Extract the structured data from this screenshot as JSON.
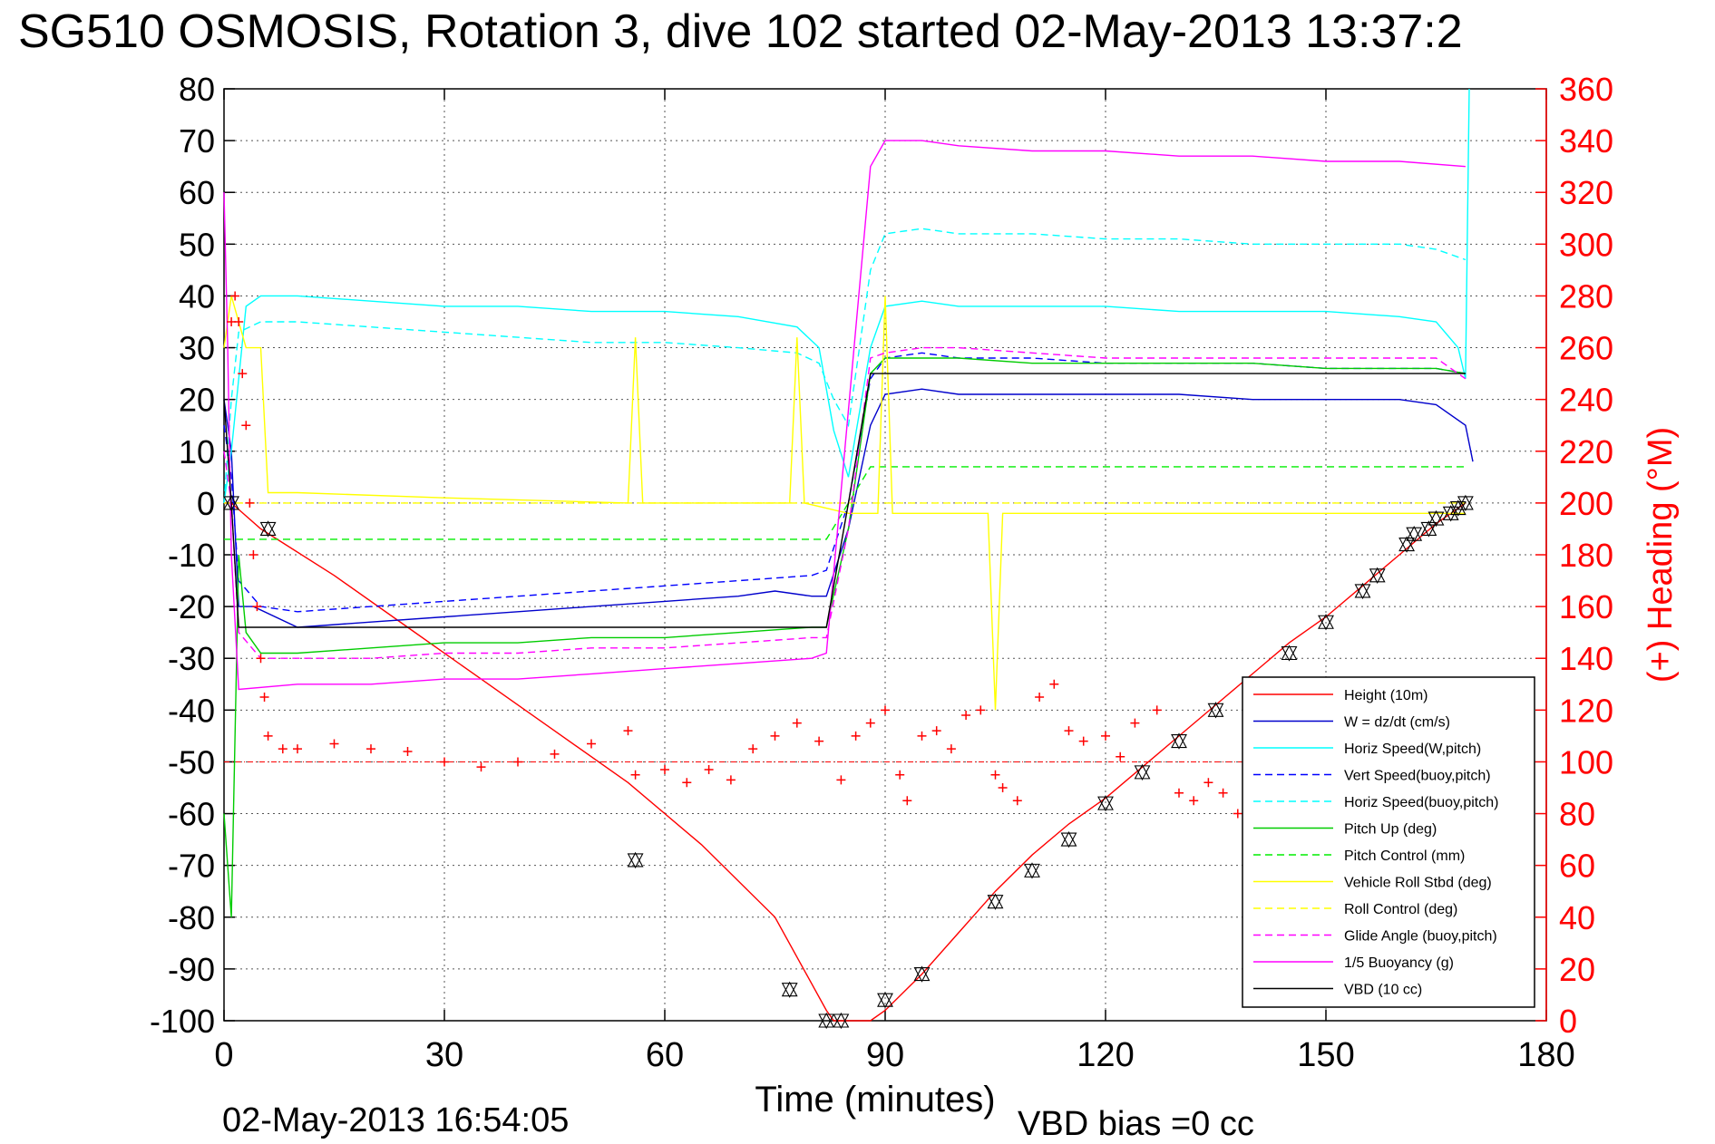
{
  "chart_data": {
    "type": "line",
    "title": "SG510 OSMOSIS, Rotation 3, dive 102 started 02-May-2013 13:37:2",
    "xlabel": "Time (minutes)",
    "ylabel": "",
    "y2label": "(+) Heading (°M)",
    "xlim": [
      0,
      180
    ],
    "ylim": [
      -100,
      80
    ],
    "y2lim": [
      0,
      360
    ],
    "xticks": [
      "0",
      "30",
      "60",
      "90",
      "120",
      "150",
      "180"
    ],
    "yticks": [
      "80",
      "70",
      "60",
      "50",
      "40",
      "30",
      "20",
      "10",
      "0",
      "-10",
      "-20",
      "-30",
      "-40",
      "-50",
      "-60",
      "-70",
      "-80",
      "-90",
      "-100"
    ],
    "y2ticks": [
      "360",
      "340",
      "320",
      "300",
      "280",
      "260",
      "240",
      "220",
      "200",
      "180",
      "160",
      "140",
      "120",
      "100",
      "80",
      "60",
      "40",
      "20",
      "0"
    ],
    "grid": true,
    "legend_position": "bottom-right",
    "footer_left": "02-May-2013 16:54:05",
    "footer_right": "VBD bias =0 cc",
    "series": [
      {
        "name": "Height (10m)",
        "color": "#ff0000",
        "style": "solid",
        "x": [
          0,
          1,
          5,
          15,
          25,
          35,
          45,
          55,
          65,
          75,
          82,
          83,
          85,
          88,
          90,
          95,
          100,
          105,
          110,
          115,
          120,
          125,
          130,
          135,
          140,
          145,
          150,
          155,
          160,
          165,
          169
        ],
        "y": [
          0,
          0,
          -5,
          -14,
          -24,
          -34,
          -44,
          -54,
          -66,
          -80,
          -98,
          -100,
          -100,
          -100,
          -98,
          -91,
          -83,
          -75,
          -68,
          -62,
          -57,
          -51,
          -45,
          -39,
          -33,
          -27,
          -22,
          -16,
          -10,
          -4,
          0
        ]
      },
      {
        "name": "W = dz/dt (cm/s)",
        "color": "#0000cc",
        "style": "solid",
        "x": [
          0,
          1,
          2,
          4,
          10,
          20,
          30,
          40,
          50,
          60,
          70,
          75,
          80,
          82,
          85,
          88,
          90,
          95,
          100,
          110,
          120,
          130,
          140,
          150,
          160,
          165,
          169,
          170
        ],
        "y": [
          20,
          10,
          -20,
          -20,
          -24,
          -23,
          -22,
          -21,
          -20,
          -19,
          -18,
          -17,
          -18,
          -18,
          -5,
          15,
          21,
          22,
          21,
          21,
          21,
          21,
          20,
          20,
          20,
          19,
          15,
          8
        ]
      },
      {
        "name": "Horiz Speed(W,pitch)",
        "color": "#00ffff",
        "style": "solid",
        "x": [
          0,
          1,
          3,
          5,
          10,
          20,
          30,
          40,
          50,
          60,
          70,
          78,
          81,
          83,
          85,
          88,
          90,
          95,
          100,
          110,
          120,
          130,
          140,
          150,
          160,
          165,
          168,
          169,
          169.5
        ],
        "y": [
          0,
          10,
          38,
          40,
          40,
          39,
          38,
          38,
          37,
          37,
          36,
          34,
          30,
          14,
          5,
          30,
          38,
          39,
          38,
          38,
          38,
          37,
          37,
          37,
          36,
          35,
          30,
          24,
          80
        ]
      },
      {
        "name": "Vert Speed(buoy,pitch)",
        "color": "#0000ff",
        "style": "dashed",
        "x": [
          0,
          1,
          2,
          5,
          10,
          20,
          30,
          40,
          50,
          60,
          70,
          80,
          82,
          85,
          88,
          90,
          95,
          100,
          110,
          120,
          130,
          140,
          150,
          160,
          165,
          169
        ],
        "y": [
          15,
          5,
          -15,
          -20,
          -21,
          -20,
          -19,
          -18,
          -17,
          -16,
          -15,
          -14,
          -13,
          0,
          24,
          28,
          29,
          28,
          28,
          27,
          27,
          27,
          26,
          26,
          26,
          25
        ]
      },
      {
        "name": "Horiz Speed(buoy,pitch)",
        "color": "#00ffff",
        "style": "dashed",
        "x": [
          0,
          1,
          2,
          5,
          10,
          20,
          30,
          40,
          50,
          60,
          70,
          78,
          81,
          83,
          85,
          88,
          90,
          95,
          100,
          110,
          120,
          130,
          140,
          150,
          160,
          165,
          169
        ],
        "y": [
          0,
          20,
          33,
          35,
          35,
          34,
          33,
          32,
          31,
          31,
          30,
          29,
          27,
          20,
          15,
          45,
          52,
          53,
          52,
          52,
          51,
          51,
          50,
          50,
          50,
          49,
          47
        ]
      },
      {
        "name": "Pitch Up (deg)",
        "color": "#00cc00",
        "style": "solid",
        "x": [
          0,
          1,
          2,
          3,
          5,
          10,
          20,
          30,
          40,
          50,
          60,
          70,
          80,
          82,
          85,
          88,
          90,
          95,
          100,
          110,
          120,
          130,
          140,
          150,
          160,
          165,
          169
        ],
        "y": [
          -60,
          -80,
          -10,
          -25,
          -29,
          -29,
          -28,
          -27,
          -27,
          -26,
          -26,
          -25,
          -24,
          -24,
          -5,
          25,
          28,
          28,
          28,
          27,
          27,
          27,
          27,
          26,
          26,
          26,
          25
        ]
      },
      {
        "name": "Pitch Control (mm)",
        "color": "#00ee00",
        "style": "dashed",
        "x": [
          0,
          5,
          6,
          30,
          60,
          82,
          88,
          90,
          120,
          150,
          169
        ],
        "y": [
          -7,
          -7,
          -7,
          -7,
          -7,
          -7,
          7,
          7,
          7,
          7,
          7
        ]
      },
      {
        "name": "Vehicle Roll Stbd (deg)",
        "color": "#ffff00",
        "style": "solid",
        "x": [
          0,
          1,
          3,
          5,
          6,
          10,
          30,
          55,
          56,
          57,
          77,
          78,
          79,
          85,
          89,
          90,
          91,
          95,
          104,
          105,
          106,
          110,
          115,
          120,
          125,
          130,
          135,
          140,
          145,
          150,
          155,
          160,
          165,
          169
        ],
        "y": [
          30,
          40,
          30,
          30,
          2,
          2,
          1,
          0,
          32,
          0,
          0,
          32,
          0,
          -2,
          -2,
          40,
          -2,
          -2,
          -2,
          -40,
          -2,
          -2,
          -2,
          -2,
          -2,
          -2,
          -2,
          -2,
          -2,
          -2,
          -2,
          -2,
          -2,
          -2
        ]
      },
      {
        "name": "Roll Control (deg)",
        "color": "#ffff00",
        "style": "dashed",
        "x": [
          0,
          5,
          6,
          30,
          60,
          82,
          88,
          90,
          120,
          150,
          169
        ],
        "y": [
          0,
          0,
          0,
          0,
          0,
          0,
          0,
          0,
          0,
          0,
          0
        ]
      },
      {
        "name": "Glide Angle (buoy,pitch)",
        "color": "#ff00ff",
        "style": "dashed",
        "x": [
          0,
          1,
          2,
          5,
          10,
          20,
          30,
          40,
          50,
          60,
          70,
          80,
          82,
          85,
          88,
          90,
          95,
          100,
          110,
          120,
          130,
          140,
          150,
          160,
          165,
          169
        ],
        "y": [
          10,
          0,
          -25,
          -30,
          -30,
          -30,
          -29,
          -29,
          -28,
          -28,
          -27,
          -26,
          -26,
          -5,
          28,
          29,
          30,
          30,
          29,
          28,
          28,
          28,
          28,
          28,
          28,
          24
        ]
      },
      {
        "name": "1/5 Buoyancy (g)",
        "color": "#ff00ff",
        "style": "solid",
        "x": [
          0,
          0.5,
          1,
          2,
          10,
          20,
          30,
          40,
          50,
          60,
          70,
          80,
          82,
          88,
          90,
          95,
          100,
          110,
          120,
          130,
          140,
          150,
          160,
          169
        ],
        "y": [
          60,
          30,
          -10,
          -36,
          -35,
          -35,
          -34,
          -34,
          -33,
          -32,
          -31,
          -30,
          -29,
          65,
          70,
          70,
          69,
          68,
          68,
          67,
          67,
          66,
          66,
          65
        ]
      },
      {
        "name": "VBD (10 cc)",
        "color": "#000000",
        "style": "solid",
        "x": [
          0,
          1,
          2,
          82,
          85,
          88,
          90,
          169
        ],
        "y": [
          20,
          0,
          -24,
          -24,
          0,
          25,
          25,
          25
        ]
      }
    ],
    "heading": {
      "color": "#ff0000",
      "reference": 100,
      "x": [
        1,
        1.5,
        2,
        2.5,
        3,
        3.5,
        4,
        4.5,
        5,
        5.5,
        6,
        8,
        10,
        15,
        20,
        25,
        30,
        35,
        40,
        45,
        50,
        55,
        56,
        60,
        63,
        66,
        69,
        72,
        75,
        78,
        81,
        84,
        86,
        88,
        90,
        92,
        93,
        95,
        97,
        99,
        101,
        103,
        105,
        106,
        108,
        111,
        113,
        115,
        117,
        120,
        122,
        124,
        127,
        130,
        132,
        134,
        136,
        138,
        140
      ],
      "y": [
        270,
        280,
        270,
        250,
        230,
        200,
        180,
        160,
        140,
        125,
        110,
        105,
        105,
        107,
        105,
        104,
        100,
        98,
        100,
        103,
        107,
        112,
        95,
        97,
        92,
        97,
        93,
        105,
        110,
        115,
        108,
        93,
        110,
        115,
        120,
        95,
        85,
        110,
        112,
        105,
        118,
        120,
        95,
        90,
        85,
        125,
        130,
        112,
        108,
        110,
        102,
        115,
        120,
        88,
        85,
        92,
        88,
        80,
        95
      ]
    },
    "markers": {
      "x": [
        1,
        6,
        56,
        77,
        82,
        84,
        90,
        95,
        105,
        110,
        115,
        120,
        125,
        130,
        135,
        140,
        145,
        150,
        155,
        157,
        161,
        162,
        164,
        165,
        167,
        168,
        169
      ],
      "y": [
        0,
        -5,
        -69,
        -94,
        -100,
        -100,
        -96,
        -91,
        -77,
        -71,
        -65,
        -58,
        -52,
        -46,
        -40,
        -35,
        -29,
        -23,
        -17,
        -14,
        -8,
        -6,
        -5,
        -3,
        -2,
        -1,
        0
      ]
    }
  }
}
